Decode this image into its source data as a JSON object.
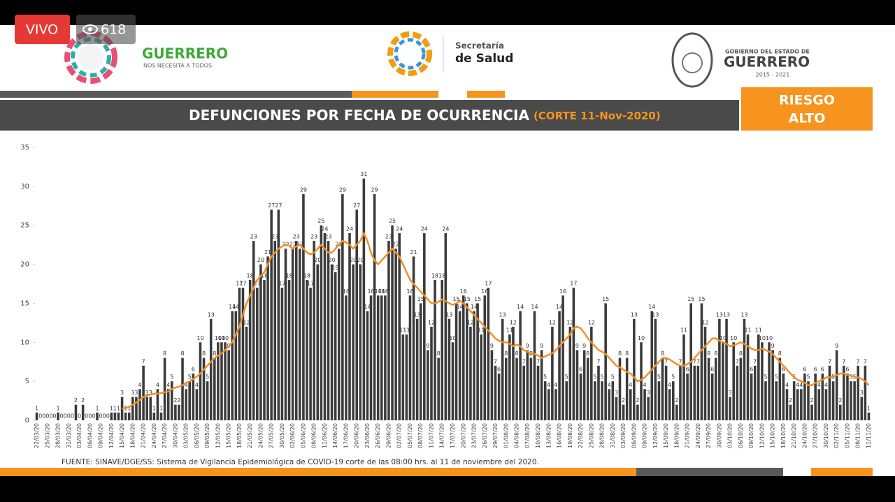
{
  "live_badge": "VIVO",
  "viewer_count": 618,
  "header": {
    "left_logo_title": "GUERRERO",
    "left_logo_tagline": "NOS NECESITA A TODOS",
    "center_logo_line1": "Secretaría",
    "center_logo_line2": "de Salud",
    "right_logo_line1": "GOBIERNO DEL ESTADO DE",
    "right_logo_line2": "GUERRERO",
    "right_logo_years": "2015 - 2021"
  },
  "risk_badge": {
    "line1": "RIESGO",
    "line2": "ALTO"
  },
  "chart_data": {
    "type": "bar",
    "title": "DEFUNCIONES POR FECHA DE OCURRENCIA",
    "subtitle": "(CORTE 11-Nov-2020)",
    "source_note": "FUENTE: SINAVE/DGE/SS: Sistema de Vigilancia Epidemiológica de COVID-19 corte de las 08:00 hrs. al 11 de noviembre del 2020.",
    "categories": [
      "22/03/20",
      null,
      null,
      "25/03/20",
      null,
      null,
      "28/03/20",
      null,
      null,
      "31/03/20",
      null,
      null,
      "03/04/20",
      null,
      null,
      "06/04/20",
      null,
      null,
      "09/04/20",
      null,
      null,
      "12/04/20",
      null,
      null,
      "15/04/20",
      null,
      null,
      "18/04/20",
      null,
      null,
      "21/04/20",
      null,
      null,
      "24/04/20",
      null,
      null,
      "27/04/20",
      null,
      null,
      "30/04/20",
      null,
      null,
      "03/05/20",
      null,
      null,
      "06/05/20",
      null,
      null,
      "09/05/20",
      null,
      null,
      "12/05/20",
      null,
      null,
      "15/05/20",
      null,
      null,
      "18/05/20",
      null,
      null,
      "21/05/20",
      null,
      null,
      "24/05/20",
      null,
      null,
      "27/05/20",
      null,
      null,
      "30/05/20",
      null,
      null,
      "02/06/20",
      null,
      null,
      "05/06/20",
      null,
      null,
      "08/06/20",
      null,
      null,
      "11/06/20",
      null,
      null,
      "14/06/20",
      null,
      null,
      "17/06/20",
      null,
      null,
      "20/06/20",
      null,
      null,
      "23/06/20",
      null,
      null,
      "26/06/20",
      null,
      null,
      "29/06/20",
      null,
      null,
      "02/07/20",
      null,
      null,
      "05/07/20",
      null,
      null,
      "08/07/20",
      null,
      null,
      "11/07/20",
      null,
      null,
      "14/07/20",
      null,
      null,
      "17/07/20",
      null,
      null,
      "20/07/20",
      null,
      null,
      "23/07/20",
      null,
      null,
      "26/07/20",
      null,
      null,
      "29/07/20",
      null,
      null,
      "01/08/20",
      null,
      null,
      "04/08/20",
      null,
      null,
      "07/08/20",
      null,
      null,
      "10/08/20",
      null,
      null,
      "13/08/20",
      null,
      null,
      "16/08/20",
      null,
      null,
      "19/08/20",
      null,
      null,
      "22/08/20",
      null,
      null,
      "25/08/20",
      null,
      null,
      "28/08/20",
      null,
      null,
      "31/08/20",
      null,
      null,
      "03/09/20",
      null,
      null,
      "06/09/20",
      null,
      null,
      "09/09/20",
      null,
      null,
      "12/09/20",
      null,
      null,
      "15/09/20",
      null,
      null,
      "18/09/20",
      null,
      null,
      "21/09/20",
      null,
      null,
      "24/09/20",
      null,
      null,
      "27/09/20",
      null,
      null,
      "30/09/20",
      null,
      null,
      "03/10/20",
      null,
      null,
      "06/10/20",
      null,
      null,
      "09/10/20",
      null,
      null,
      "12/10/20",
      null,
      null,
      "15/10/20",
      null,
      null,
      "18/10/20",
      null,
      null,
      "21/10/20",
      null,
      null,
      "24/10/20",
      null,
      null,
      "27/10/20",
      null,
      null,
      "30/10/20",
      null,
      null,
      "02/11/20",
      null,
      null,
      "05/11/20",
      null,
      null,
      "08/11/20",
      null,
      null,
      "11/11/20"
    ],
    "series": [
      {
        "color": "#3b3b3b",
        "values": [
          1,
          0,
          0,
          0,
          0,
          0,
          1,
          0,
          0,
          0,
          0,
          2,
          0,
          2,
          0,
          0,
          0,
          1,
          0,
          0,
          0,
          1,
          1,
          1,
          3,
          1,
          1,
          3,
          3,
          4,
          7,
          3,
          3,
          1,
          4,
          1,
          8,
          4,
          5,
          2,
          2,
          8,
          4,
          5,
          6,
          4,
          10,
          8,
          5,
          13,
          8,
          10,
          10,
          10,
          9,
          14,
          14,
          17,
          17,
          12,
          18,
          23,
          17,
          20,
          18,
          21,
          27,
          23,
          27,
          17,
          22,
          18,
          22,
          23,
          22,
          29,
          18,
          17,
          23,
          20,
          25,
          24,
          23,
          20,
          19,
          22,
          29,
          16,
          24,
          20,
          27,
          20,
          31,
          14,
          16,
          29,
          16,
          16,
          16,
          23,
          25,
          22,
          24,
          11,
          11,
          16,
          21,
          13,
          15,
          24,
          9,
          12,
          18,
          8,
          18,
          24,
          13,
          10,
          15,
          14,
          16,
          15,
          12,
          14,
          15,
          11,
          16,
          17,
          9,
          7,
          6,
          13,
          8,
          11,
          12,
          8,
          14,
          7,
          9,
          8,
          14,
          7,
          9,
          5,
          4,
          12,
          4,
          14,
          16,
          5,
          12,
          17,
          9,
          6,
          9,
          8,
          12,
          5,
          7,
          5,
          15,
          4,
          5,
          3,
          8,
          2,
          8,
          4,
          13,
          2,
          10,
          4,
          3,
          14,
          13,
          5,
          8,
          7,
          4,
          5,
          2,
          7,
          11,
          6,
          15,
          7,
          7,
          15,
          12,
          8,
          6,
          8,
          13,
          10,
          13,
          3,
          10,
          7,
          8,
          13,
          11,
          6,
          7,
          11,
          10,
          5,
          10,
          9,
          5,
          8,
          6,
          4,
          2,
          5,
          4,
          4,
          6,
          5,
          2,
          6,
          4,
          6,
          4,
          7,
          5,
          9,
          2,
          7,
          6,
          5,
          5,
          7,
          3,
          7,
          1
        ]
      },
      {
        "type": "line",
        "color": "#f0902a",
        "values": [
          null,
          null,
          null,
          null,
          null,
          null,
          null,
          null,
          null,
          null,
          null,
          null,
          null,
          null,
          null,
          null,
          null,
          null,
          null,
          null,
          null,
          null,
          null,
          null,
          1.5,
          1.6,
          1.7,
          2,
          2.3,
          2.6,
          3,
          3.2,
          3.3,
          3.4,
          3.4,
          3.5,
          3.6,
          3.7,
          4,
          4.2,
          4.3,
          4.5,
          4.8,
          5,
          5.3,
          5.6,
          6,
          6.5,
          7,
          7.5,
          8,
          8.3,
          8.6,
          9,
          9.5,
          10,
          11,
          12,
          13.5,
          15,
          16,
          17,
          18,
          18.5,
          19,
          20,
          21,
          21.5,
          22,
          22.3,
          22.5,
          22.4,
          22,
          22.3,
          22.5,
          22,
          21.5,
          21.3,
          21.5,
          22,
          22.5,
          22,
          21.5,
          21.5,
          22,
          22.5,
          23,
          22.8,
          22.5,
          22,
          22.5,
          23,
          24,
          23,
          21.5,
          20.5,
          20,
          20.5,
          21,
          21.5,
          22,
          21.5,
          21,
          20,
          19,
          18,
          17.5,
          17,
          16.5,
          16,
          15.5,
          15,
          15,
          15.2,
          15.5,
          15.3,
          15,
          14.8,
          15,
          15.3,
          15,
          14.5,
          14,
          13.5,
          13,
          12.5,
          12,
          11.5,
          11,
          10.5,
          10.2,
          10,
          10,
          9.8,
          9.5,
          9.7,
          9.5,
          9,
          8.8,
          8.5,
          8.5,
          8.3,
          8,
          8.2,
          8.4,
          8.6,
          9,
          9.5,
          10,
          10.5,
          11,
          11.8,
          12,
          11.8,
          11.2,
          10.5,
          10,
          9.5,
          9,
          8.8,
          8.5,
          8,
          7.5,
          7,
          6.8,
          6.5,
          6.2,
          6,
          5.5,
          5,
          5.2,
          5.5,
          6,
          6.5,
          7,
          7.5,
          8,
          8,
          7.8,
          7.5,
          7.2,
          7,
          7,
          7.2,
          7.5,
          8,
          8.5,
          9,
          9.5,
          10,
          10.5,
          10.5,
          10.2,
          10,
          9.8,
          9.5,
          9.6,
          9.8,
          10,
          9.8,
          9.5,
          9.2,
          9,
          9,
          9.2,
          9,
          8.8,
          8.5,
          8,
          7.5,
          7,
          6.5,
          6,
          5.5,
          5.2,
          5,
          4.8,
          4.5,
          4.5,
          4.8,
          5,
          5.2,
          5.5,
          5.5,
          5.6,
          5.8,
          6,
          6,
          5.8,
          5.7,
          5.6,
          5.5,
          5.3,
          5,
          4.5
        ]
      }
    ],
    "ylim": [
      0,
      35
    ],
    "yticks": [
      0,
      5,
      10,
      15,
      20,
      25,
      30,
      35
    ],
    "grid": false
  }
}
